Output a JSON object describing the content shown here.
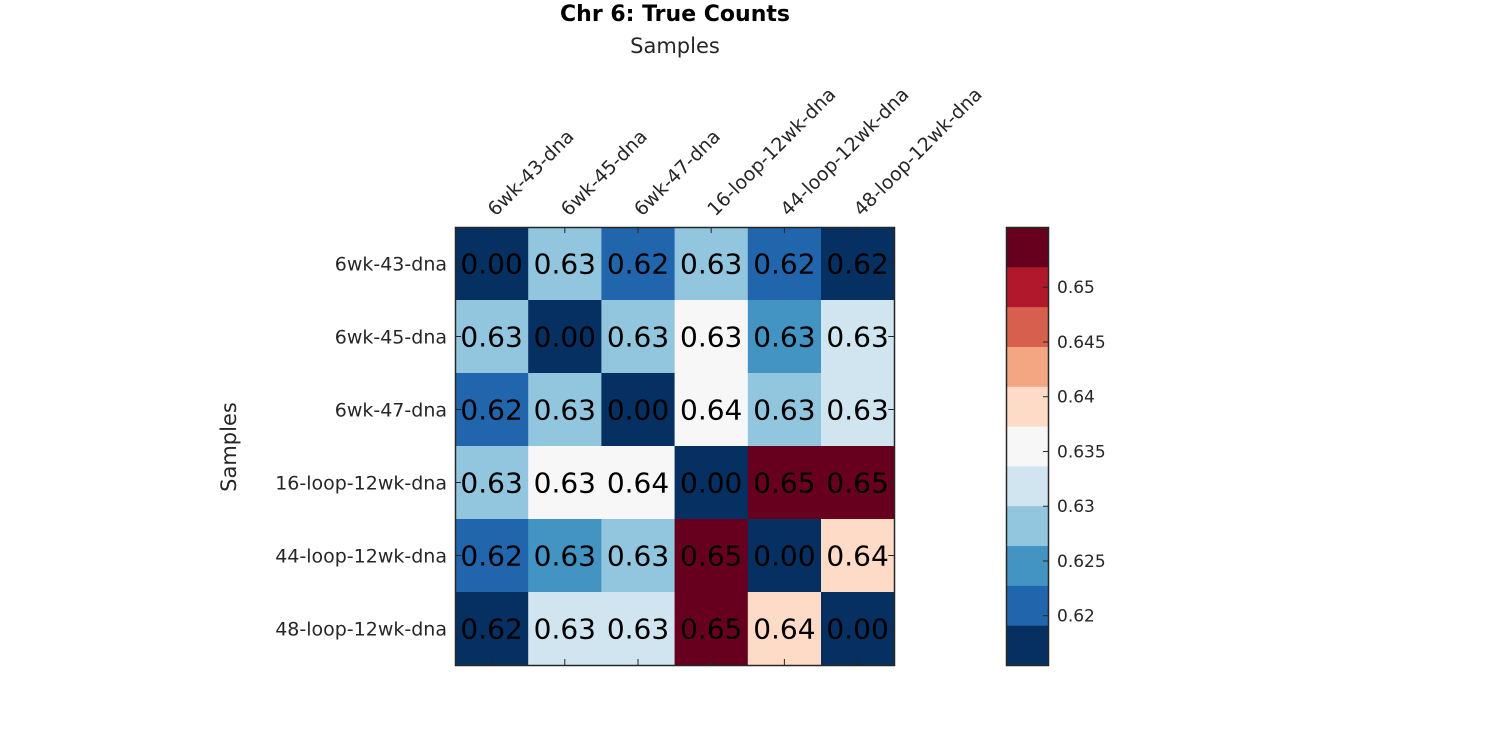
{
  "chart_data": {
    "type": "heatmap",
    "title": "Chr 6: True Counts",
    "xlabel": "Samples",
    "ylabel": "Samples",
    "x_categories": [
      "6wk-43-dna",
      "6wk-45-dna",
      "6wk-47-dna",
      "16-loop-12wk-dna",
      "44-loop-12wk-dna",
      "48-loop-12wk-dna"
    ],
    "y_categories": [
      "6wk-43-dna",
      "6wk-45-dna",
      "6wk-47-dna",
      "16-loop-12wk-dna",
      "44-loop-12wk-dna",
      "48-loop-12wk-dna"
    ],
    "values": [
      [
        0.0,
        0.627,
        0.621,
        0.628,
        0.621,
        0.617
      ],
      [
        0.627,
        0.0,
        0.628,
        0.634,
        0.626,
        0.631
      ],
      [
        0.621,
        0.628,
        0.0,
        0.637,
        0.628,
        0.631
      ],
      [
        0.628,
        0.634,
        0.637,
        0.0,
        0.652,
        0.652
      ],
      [
        0.621,
        0.626,
        0.628,
        0.652,
        0.0,
        0.638
      ],
      [
        0.617,
        0.631,
        0.631,
        0.652,
        0.638,
        0.0
      ]
    ],
    "cell_labels": [
      [
        "0.00",
        "0.63",
        "0.62",
        "0.63",
        "0.62",
        "0.62"
      ],
      [
        "0.63",
        "0.00",
        "0.63",
        "0.63",
        "0.63",
        "0.63"
      ],
      [
        "0.62",
        "0.63",
        "0.00",
        "0.64",
        "0.63",
        "0.63"
      ],
      [
        "0.63",
        "0.63",
        "0.64",
        "0.00",
        "0.65",
        "0.65"
      ],
      [
        "0.62",
        "0.63",
        "0.63",
        "0.65",
        "0.00",
        "0.64"
      ],
      [
        "0.62",
        "0.63",
        "0.63",
        "0.65",
        "0.64",
        "0.00"
      ]
    ],
    "colorbar": {
      "range": [
        0.6155,
        0.6555
      ],
      "ticks": [
        0.62,
        0.625,
        0.63,
        0.635,
        0.64,
        0.645,
        0.65
      ],
      "tick_labels": [
        "0.62",
        "0.625",
        "0.63",
        "0.635",
        "0.64",
        "0.645",
        "0.65"
      ],
      "colors": [
        "#053061",
        "#2166ac",
        "#4393c3",
        "#92c5de",
        "#d1e5f0",
        "#f7f7f7",
        "#fddbc7",
        "#f4a582",
        "#d6604d",
        "#b2182b",
        "#67001f"
      ]
    },
    "grid": false,
    "legend": "colorbar-right"
  }
}
